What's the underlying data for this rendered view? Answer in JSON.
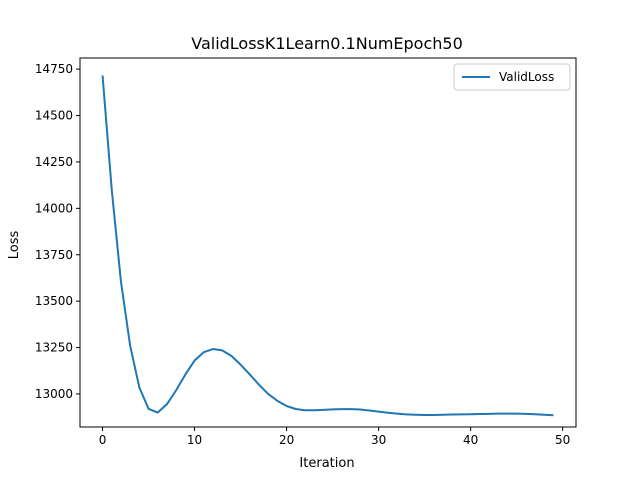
{
  "chart_data": {
    "type": "line",
    "title": "ValidLossK1Learn0.1NumEpoch50",
    "xlabel": "Iteration",
    "ylabel": "Loss",
    "xlim": [
      -2.45,
      51.45
    ],
    "ylim": [
      12822,
      14810
    ],
    "xticks": [
      0,
      10,
      20,
      30,
      40,
      50
    ],
    "yticks": [
      13000,
      13250,
      13500,
      13750,
      14000,
      14250,
      14500,
      14750
    ],
    "grid": false,
    "legend_position": "top-right",
    "series": [
      {
        "name": "ValidLoss",
        "color": "#1f77b4",
        "x": [
          0,
          1,
          2,
          3,
          4,
          5,
          6,
          7,
          8,
          9,
          10,
          11,
          12,
          13,
          14,
          15,
          16,
          17,
          18,
          19,
          20,
          21,
          22,
          23,
          24,
          25,
          26,
          27,
          28,
          29,
          30,
          31,
          32,
          33,
          34,
          35,
          36,
          37,
          38,
          39,
          40,
          41,
          42,
          43,
          44,
          45,
          46,
          47,
          48,
          49
        ],
        "y": [
          14716,
          14100,
          13605,
          13260,
          13035,
          12920,
          12900,
          12945,
          13020,
          13105,
          13180,
          13225,
          13242,
          13235,
          13205,
          13158,
          13105,
          13050,
          13000,
          12963,
          12935,
          12919,
          12912,
          12912,
          12914,
          12917,
          12918,
          12918,
          12916,
          12911,
          12905,
          12899,
          12894,
          12890,
          12888,
          12887,
          12887,
          12888,
          12889,
          12890,
          12891,
          12892,
          12893,
          12894,
          12894,
          12894,
          12893,
          12891,
          12888,
          12885
        ]
      }
    ]
  }
}
